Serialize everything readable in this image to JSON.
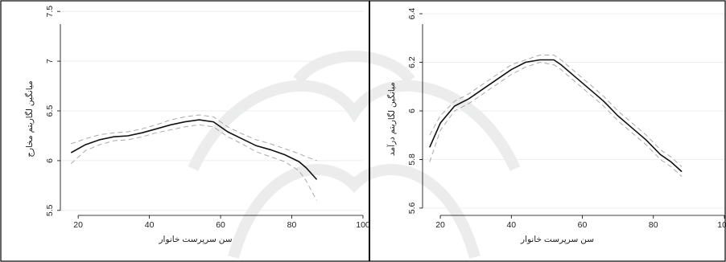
{
  "chart_data": [
    {
      "type": "line",
      "xlabel": "سن سرپرست خانوار",
      "ylabel": "میانگین لگاریتم مخارج",
      "xlim": [
        15,
        100
      ],
      "ylim": [
        5.45,
        7.55
      ],
      "xticks": [
        20,
        40,
        60,
        80,
        100
      ],
      "yticks": [
        5.5,
        6,
        6.5,
        7,
        7.5
      ],
      "grid": true,
      "series": [
        {
          "role": "mean",
          "x": [
            18,
            22,
            26,
            30,
            34,
            38,
            42,
            46,
            50,
            54,
            58,
            62,
            66,
            70,
            74,
            78,
            82,
            84,
            87
          ],
          "values": [
            6.08,
            6.16,
            6.21,
            6.24,
            6.25,
            6.28,
            6.32,
            6.36,
            6.39,
            6.41,
            6.39,
            6.29,
            6.22,
            6.15,
            6.11,
            6.06,
            5.99,
            5.93,
            5.81
          ]
        },
        {
          "role": "upper",
          "x": [
            18,
            22,
            26,
            30,
            34,
            38,
            42,
            46,
            50,
            54,
            58,
            62,
            66,
            70,
            74,
            78,
            82,
            84,
            87
          ],
          "values": [
            6.17,
            6.22,
            6.26,
            6.28,
            6.29,
            6.32,
            6.36,
            6.41,
            6.44,
            6.46,
            6.44,
            6.34,
            6.27,
            6.21,
            6.17,
            6.12,
            6.07,
            6.04,
            6.0
          ]
        },
        {
          "role": "lower",
          "x": [
            18,
            22,
            26,
            30,
            34,
            38,
            42,
            46,
            50,
            54,
            58,
            62,
            66,
            70,
            74,
            78,
            82,
            84,
            87
          ],
          "values": [
            5.97,
            6.1,
            6.16,
            6.2,
            6.21,
            6.24,
            6.28,
            6.31,
            6.34,
            6.36,
            6.34,
            6.24,
            6.17,
            6.09,
            6.04,
            5.99,
            5.9,
            5.8,
            5.6
          ]
        }
      ]
    },
    {
      "type": "line",
      "xlabel": "سن سرپرست خانوار",
      "ylabel": "میانگین لگاریتم درآمد",
      "xlim": [
        15,
        100
      ],
      "ylim": [
        5.57,
        6.43
      ],
      "xticks": [
        20,
        40,
        60,
        80,
        100
      ],
      "yticks": [
        5.6,
        5.8,
        6,
        6.2,
        6.4
      ],
      "grid": true,
      "series": [
        {
          "role": "mean",
          "x": [
            17,
            20,
            24,
            28,
            32,
            36,
            40,
            44,
            48,
            52,
            54,
            58,
            62,
            66,
            70,
            74,
            78,
            82,
            85,
            88
          ],
          "values": [
            5.85,
            5.95,
            6.02,
            6.05,
            6.09,
            6.13,
            6.17,
            6.2,
            6.21,
            6.21,
            6.19,
            6.14,
            6.09,
            6.04,
            5.98,
            5.93,
            5.88,
            5.82,
            5.79,
            5.75
          ]
        },
        {
          "role": "upper",
          "x": [
            17,
            20,
            24,
            28,
            32,
            36,
            40,
            44,
            48,
            52,
            54,
            58,
            62,
            66,
            70,
            74,
            78,
            82,
            85,
            88
          ],
          "values": [
            5.9,
            5.98,
            6.04,
            6.07,
            6.11,
            6.15,
            6.19,
            6.21,
            6.23,
            6.23,
            6.21,
            6.16,
            6.11,
            6.06,
            6.0,
            5.95,
            5.9,
            5.84,
            5.81,
            5.77
          ]
        },
        {
          "role": "lower",
          "x": [
            17,
            20,
            24,
            28,
            32,
            36,
            40,
            44,
            48,
            52,
            54,
            58,
            62,
            66,
            70,
            74,
            78,
            82,
            85,
            88
          ],
          "values": [
            5.79,
            5.92,
            6.0,
            6.03,
            6.07,
            6.11,
            6.15,
            6.18,
            6.2,
            6.19,
            6.17,
            6.12,
            6.07,
            6.02,
            5.96,
            5.91,
            5.86,
            5.8,
            5.77,
            5.73
          ]
        }
      ]
    }
  ]
}
